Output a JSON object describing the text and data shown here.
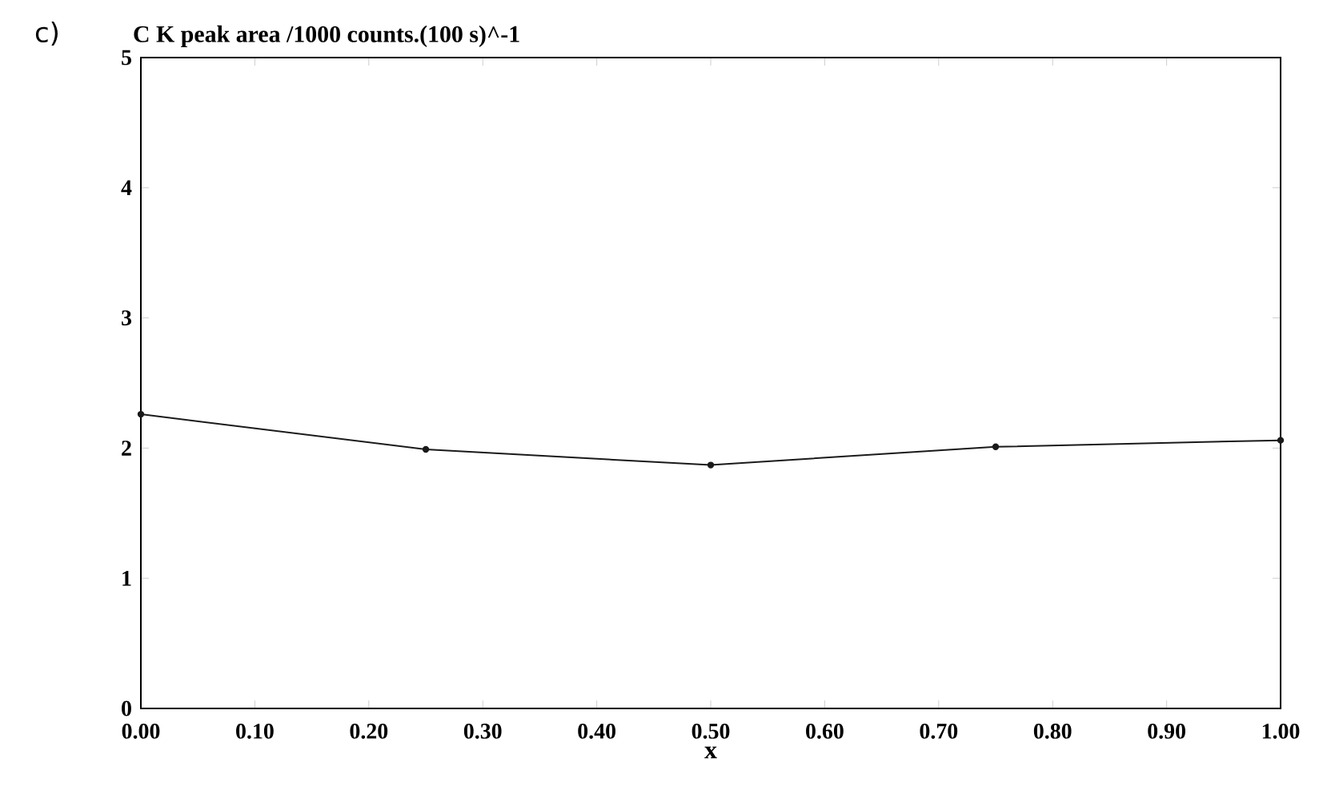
{
  "chart_data": {
    "type": "line",
    "ylabel": "C K peak area /1000 counts.(100 s)^-1",
    "xlabel": "x",
    "annotations": [
      "c)"
    ],
    "x": [
      0,
      0.25,
      0.5,
      0.75,
      1.0
    ],
    "series": [
      {
        "color": "#1a1a1a",
        "values": [
          2.26,
          1.99,
          1.87,
          2.01,
          2.06
        ]
      }
    ],
    "xlim": [
      0,
      1
    ],
    "ylim": [
      0,
      5
    ],
    "xticks": [
      {
        "value": 0,
        "label": "0.00"
      },
      {
        "value": 0.1,
        "label": "0.10"
      },
      {
        "value": 0.2,
        "label": "0.20"
      },
      {
        "value": 0.3,
        "label": "0.30"
      },
      {
        "value": 0.4,
        "label": "0.40"
      },
      {
        "value": 0.5,
        "label": "0.50"
      },
      {
        "value": 0.6,
        "label": "0.60"
      },
      {
        "value": 0.7,
        "label": "0.70"
      },
      {
        "value": 0.8,
        "label": "0.80"
      },
      {
        "value": 0.9,
        "label": "0.90"
      },
      {
        "value": 1.0,
        "label": "1.00"
      }
    ],
    "yticks": [
      0,
      1,
      2,
      3,
      4,
      5
    ],
    "grid": false,
    "marker": "circle",
    "line_style": "solid"
  }
}
